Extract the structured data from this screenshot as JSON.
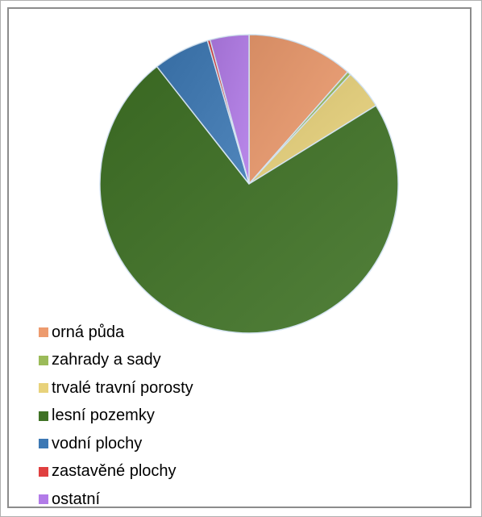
{
  "chart_data": {
    "type": "pie",
    "series": [
      {
        "name": "orná půda",
        "value": 11.5,
        "color": "#ED9B6E"
      },
      {
        "name": "zahrady a sady",
        "value": 0.4,
        "color": "#9BBB59"
      },
      {
        "name": "trvalé travní porosty",
        "value": 4.3,
        "color": "#E8D27B"
      },
      {
        "name": "lesní pozemky",
        "value": 73.2,
        "color": "#3F7225"
      },
      {
        "name": "vodní plochy",
        "value": 6.1,
        "color": "#3C78B4"
      },
      {
        "name": "zastavěné plochy",
        "value": 0.3,
        "color": "#E04040"
      },
      {
        "name": "ostatní",
        "value": 4.2,
        "color": "#B27BE8"
      }
    ],
    "legend_position": "bottom-left"
  }
}
